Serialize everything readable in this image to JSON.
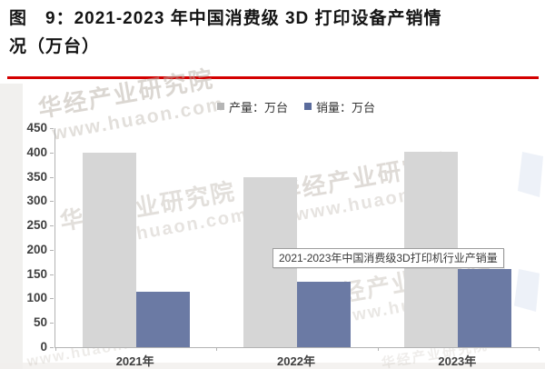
{
  "figure": {
    "title": "图　9：2021-2023 年中国消费级 3D 打印设备产销情况（万台）"
  },
  "chart_data": {
    "type": "bar",
    "title": "图 9：2021-2023 年中国消费级 3D 打印设备产销情况（万台）",
    "categories": [
      "2021年",
      "2022年",
      "2023年"
    ],
    "series": [
      {
        "key": "production",
        "name": "产量：万台",
        "color": "#d6d6d6",
        "marker_color": "#b5b5b5",
        "values": [
          400,
          350,
          402
        ]
      },
      {
        "key": "sales",
        "name": "销量：万台",
        "color": "#6b7aa4",
        "marker_color": "#5a6b9c",
        "values": [
          113,
          135,
          160
        ]
      }
    ],
    "xlabel": "",
    "ylabel": "",
    "unit": "万台",
    "ylim": [
      0,
      450
    ],
    "yticks": [
      450,
      400,
      350,
      300,
      250,
      200,
      150,
      100,
      50,
      0
    ],
    "grid": false,
    "legend_position": "top-center",
    "annotation": {
      "text": "2021-2023年中国消费级3D打印机行业产销量"
    }
  },
  "watermark": {
    "brand": "华经产业研究院",
    "url": "www.huaon.com"
  },
  "colors": {
    "title_rule": "#d40000",
    "axis": "#b3b3b3",
    "tick_label": "#404040",
    "production_bar": "#d6d6d6",
    "sales_bar": "#6b7aa4"
  }
}
